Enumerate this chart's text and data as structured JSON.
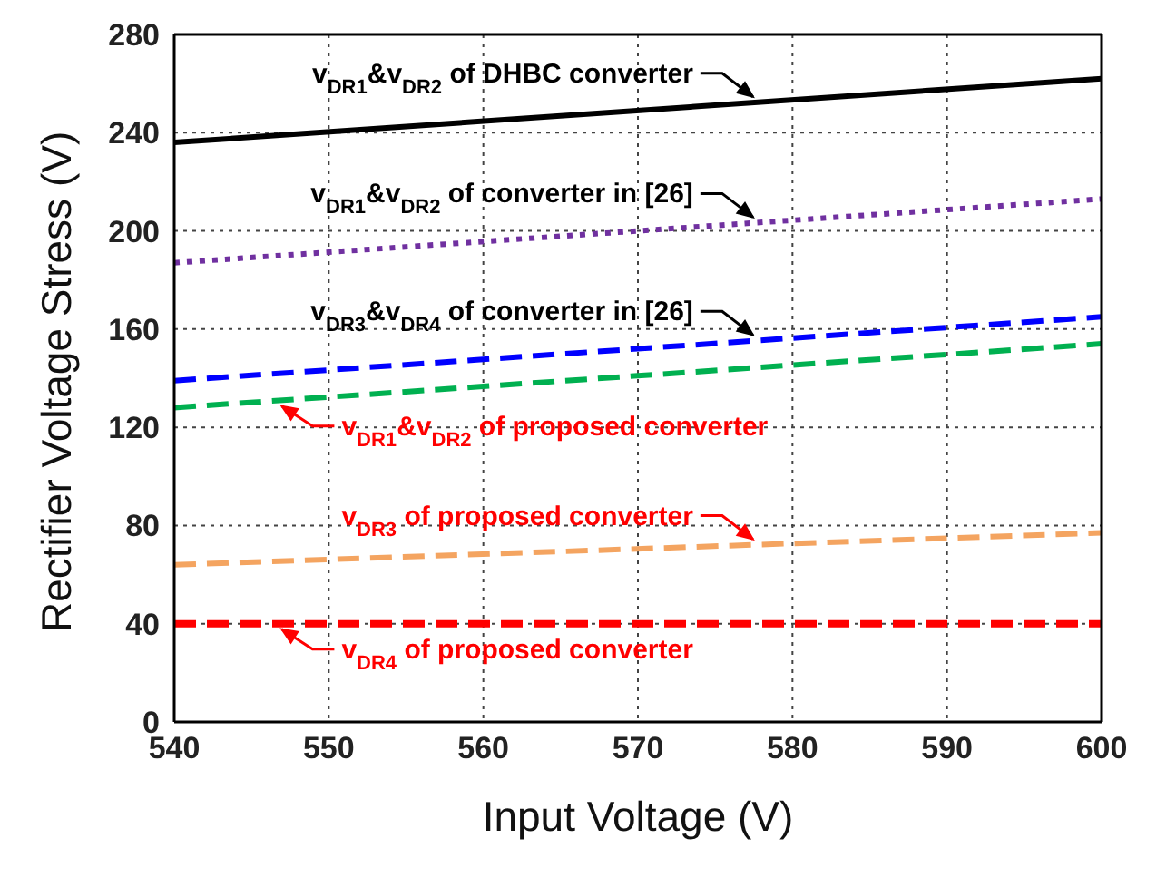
{
  "chart_data": {
    "type": "line",
    "xlabel": "Input Voltage (V)",
    "ylabel": "Rectifier Voltage Stress (V)",
    "x": [
      540,
      600
    ],
    "xlim": [
      540,
      600
    ],
    "xticks": [
      540,
      550,
      560,
      570,
      580,
      590,
      600
    ],
    "ylim": [
      0,
      280
    ],
    "yticks": [
      0,
      40,
      80,
      120,
      160,
      200,
      240,
      280
    ],
    "grid": true,
    "legend": false,
    "marker": "none",
    "series": [
      {
        "color": "#000000",
        "line_style": "solid",
        "values": [
          236,
          262
        ]
      },
      {
        "color": "#7030a0",
        "line_style": "dotted",
        "values": [
          187,
          213
        ]
      },
      {
        "color": "#0000ff",
        "line_style": "dashed",
        "values": [
          139,
          165
        ]
      },
      {
        "color": "#00b050",
        "line_style": "dashed",
        "values": [
          128,
          154
        ]
      },
      {
        "color": "#f4a460",
        "line_style": "dashed",
        "values": [
          64,
          77
        ]
      },
      {
        "color": "#ff0000",
        "line_style": "dashed",
        "values": [
          40,
          40
        ]
      }
    ],
    "annotations": [
      "v$_{DR1}$&v$_{DR2}$ of DHBC converter",
      "v$_{DR1}$&v$_{DR2}$ of converter in [26]",
      "v$_{DR3}$&v$_{DR4}$ of converter in [26]",
      "v$_{DR1}$&v$_{DR2}$ of proposed converter",
      "v$_{DR3}$ of proposed converter",
      "v$_{DR4}$ of proposed converter"
    ]
  }
}
